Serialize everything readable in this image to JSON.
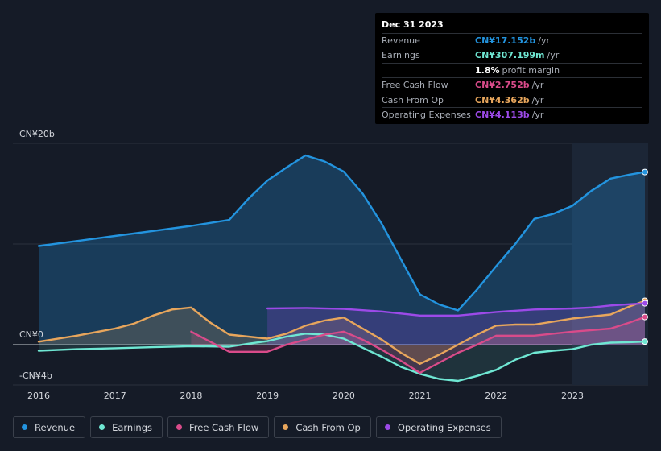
{
  "tooltip": {
    "date": "Dec 31 2023",
    "rows": [
      {
        "label": "Revenue",
        "value": "CN¥17.152b",
        "unit": "/yr",
        "color": "#2394df"
      },
      {
        "label": "Earnings",
        "value": "CN¥307.199m",
        "unit": "/yr",
        "color": "#6fe7d3"
      },
      {
        "label": "",
        "value": "1.8%",
        "unit": "profit margin",
        "color": "#ffffff"
      },
      {
        "label": "Free Cash Flow",
        "value": "CN¥2.752b",
        "unit": "/yr",
        "color": "#d94b8a"
      },
      {
        "label": "Cash From Op",
        "value": "CN¥4.362b",
        "unit": "/yr",
        "color": "#e8a65c"
      },
      {
        "label": "Operating Expenses",
        "value": "CN¥4.113b",
        "unit": "/yr",
        "color": "#9c4ae8"
      }
    ]
  },
  "legend": [
    {
      "label": "Revenue",
      "color": "#2394df"
    },
    {
      "label": "Earnings",
      "color": "#6fe7d3"
    },
    {
      "label": "Free Cash Flow",
      "color": "#d94b8a"
    },
    {
      "label": "Cash From Op",
      "color": "#e8a65c"
    },
    {
      "label": "Operating Expenses",
      "color": "#9c4ae8"
    }
  ],
  "chart_data": {
    "type": "line",
    "title": "",
    "xlabel": "",
    "ylabel": "",
    "unit": "CN¥ billions",
    "ylim": [
      -4,
      20
    ],
    "x_ticks": [
      "2016",
      "2017",
      "2018",
      "2019",
      "2020",
      "2021",
      "2022",
      "2023"
    ],
    "y_tick_labels": [
      {
        "value": 20,
        "label": "CN¥20b"
      },
      {
        "value": 0,
        "label": "CN¥0"
      },
      {
        "value": -4,
        "label": "-CN¥4b"
      }
    ],
    "series": [
      {
        "name": "Revenue",
        "color": "#2394df",
        "points": [
          [
            2016.0,
            9.8
          ],
          [
            2016.5,
            10.3
          ],
          [
            2017.0,
            10.8
          ],
          [
            2017.5,
            11.3
          ],
          [
            2018.0,
            11.8
          ],
          [
            2018.25,
            12.1
          ],
          [
            2018.5,
            12.4
          ],
          [
            2018.75,
            14.5
          ],
          [
            2019.0,
            16.3
          ],
          [
            2019.25,
            17.6
          ],
          [
            2019.5,
            18.8
          ],
          [
            2019.75,
            18.2
          ],
          [
            2020.0,
            17.2
          ],
          [
            2020.25,
            15.0
          ],
          [
            2020.5,
            12.0
          ],
          [
            2020.75,
            8.5
          ],
          [
            2021.0,
            5.0
          ],
          [
            2021.25,
            4.0
          ],
          [
            2021.5,
            3.4
          ],
          [
            2021.75,
            5.5
          ],
          [
            2022.0,
            7.8
          ],
          [
            2022.25,
            10.0
          ],
          [
            2022.5,
            12.5
          ],
          [
            2022.75,
            13.0
          ],
          [
            2023.0,
            13.8
          ],
          [
            2023.25,
            15.3
          ],
          [
            2023.5,
            16.5
          ],
          [
            2023.75,
            16.9
          ],
          [
            2023.95,
            17.152
          ]
        ]
      },
      {
        "name": "Earnings",
        "color": "#6fe7d3",
        "points": [
          [
            2016.0,
            -0.6
          ],
          [
            2016.5,
            -0.45
          ],
          [
            2017.0,
            -0.35
          ],
          [
            2017.5,
            -0.25
          ],
          [
            2018.0,
            -0.15
          ],
          [
            2018.5,
            -0.2
          ],
          [
            2018.75,
            0.1
          ],
          [
            2019.0,
            0.35
          ],
          [
            2019.25,
            0.8
          ],
          [
            2019.5,
            1.1
          ],
          [
            2019.75,
            1.0
          ],
          [
            2020.0,
            0.6
          ],
          [
            2020.25,
            -0.3
          ],
          [
            2020.5,
            -1.2
          ],
          [
            2020.75,
            -2.2
          ],
          [
            2021.0,
            -2.9
          ],
          [
            2021.25,
            -3.4
          ],
          [
            2021.5,
            -3.6
          ],
          [
            2021.75,
            -3.1
          ],
          [
            2022.0,
            -2.5
          ],
          [
            2022.25,
            -1.5
          ],
          [
            2022.5,
            -0.8
          ],
          [
            2022.75,
            -0.6
          ],
          [
            2023.0,
            -0.45
          ],
          [
            2023.25,
            0.0
          ],
          [
            2023.5,
            0.2
          ],
          [
            2023.75,
            0.25
          ],
          [
            2023.95,
            0.307
          ]
        ]
      },
      {
        "name": "Free Cash Flow",
        "color": "#d94b8a",
        "points": [
          [
            2018.0,
            1.3
          ],
          [
            2018.25,
            0.3
          ],
          [
            2018.5,
            -0.7
          ],
          [
            2018.75,
            -0.7
          ],
          [
            2019.0,
            -0.7
          ],
          [
            2019.25,
            0.0
          ],
          [
            2019.5,
            0.5
          ],
          [
            2019.75,
            1.0
          ],
          [
            2020.0,
            1.3
          ],
          [
            2020.25,
            0.5
          ],
          [
            2020.5,
            -0.5
          ],
          [
            2020.75,
            -1.6
          ],
          [
            2021.0,
            -2.8
          ],
          [
            2021.25,
            -1.8
          ],
          [
            2021.5,
            -0.8
          ],
          [
            2021.75,
            0.0
          ],
          [
            2022.0,
            0.9
          ],
          [
            2022.25,
            0.9
          ],
          [
            2022.5,
            0.9
          ],
          [
            2022.75,
            1.1
          ],
          [
            2023.0,
            1.3
          ],
          [
            2023.25,
            1.45
          ],
          [
            2023.5,
            1.6
          ],
          [
            2023.75,
            2.2
          ],
          [
            2023.95,
            2.752
          ]
        ]
      },
      {
        "name": "Cash From Op",
        "color": "#e8a65c",
        "points": [
          [
            2016.0,
            0.3
          ],
          [
            2016.5,
            0.9
          ],
          [
            2017.0,
            1.6
          ],
          [
            2017.25,
            2.1
          ],
          [
            2017.5,
            2.9
          ],
          [
            2017.75,
            3.5
          ],
          [
            2018.0,
            3.7
          ],
          [
            2018.25,
            2.2
          ],
          [
            2018.5,
            1.0
          ],
          [
            2018.75,
            0.8
          ],
          [
            2019.0,
            0.6
          ],
          [
            2019.25,
            1.1
          ],
          [
            2019.5,
            1.9
          ],
          [
            2019.75,
            2.4
          ],
          [
            2020.0,
            2.7
          ],
          [
            2020.25,
            1.6
          ],
          [
            2020.5,
            0.5
          ],
          [
            2020.75,
            -0.8
          ],
          [
            2021.0,
            -1.9
          ],
          [
            2021.25,
            -1.0
          ],
          [
            2021.5,
            0.0
          ],
          [
            2021.75,
            1.0
          ],
          [
            2022.0,
            1.9
          ],
          [
            2022.25,
            2.0
          ],
          [
            2022.5,
            2.0
          ],
          [
            2022.75,
            2.3
          ],
          [
            2023.0,
            2.6
          ],
          [
            2023.25,
            2.8
          ],
          [
            2023.5,
            3.0
          ],
          [
            2023.75,
            3.8
          ],
          [
            2023.95,
            4.362
          ]
        ]
      },
      {
        "name": "Operating Expenses",
        "color": "#9c4ae8",
        "points": [
          [
            2019.0,
            3.6
          ],
          [
            2019.5,
            3.65
          ],
          [
            2020.0,
            3.55
          ],
          [
            2020.5,
            3.3
          ],
          [
            2020.75,
            3.1
          ],
          [
            2021.0,
            2.9
          ],
          [
            2021.5,
            2.9
          ],
          [
            2022.0,
            3.25
          ],
          [
            2022.5,
            3.5
          ],
          [
            2023.0,
            3.6
          ],
          [
            2023.25,
            3.7
          ],
          [
            2023.5,
            3.9
          ],
          [
            2023.95,
            4.113
          ]
        ]
      }
    ]
  }
}
